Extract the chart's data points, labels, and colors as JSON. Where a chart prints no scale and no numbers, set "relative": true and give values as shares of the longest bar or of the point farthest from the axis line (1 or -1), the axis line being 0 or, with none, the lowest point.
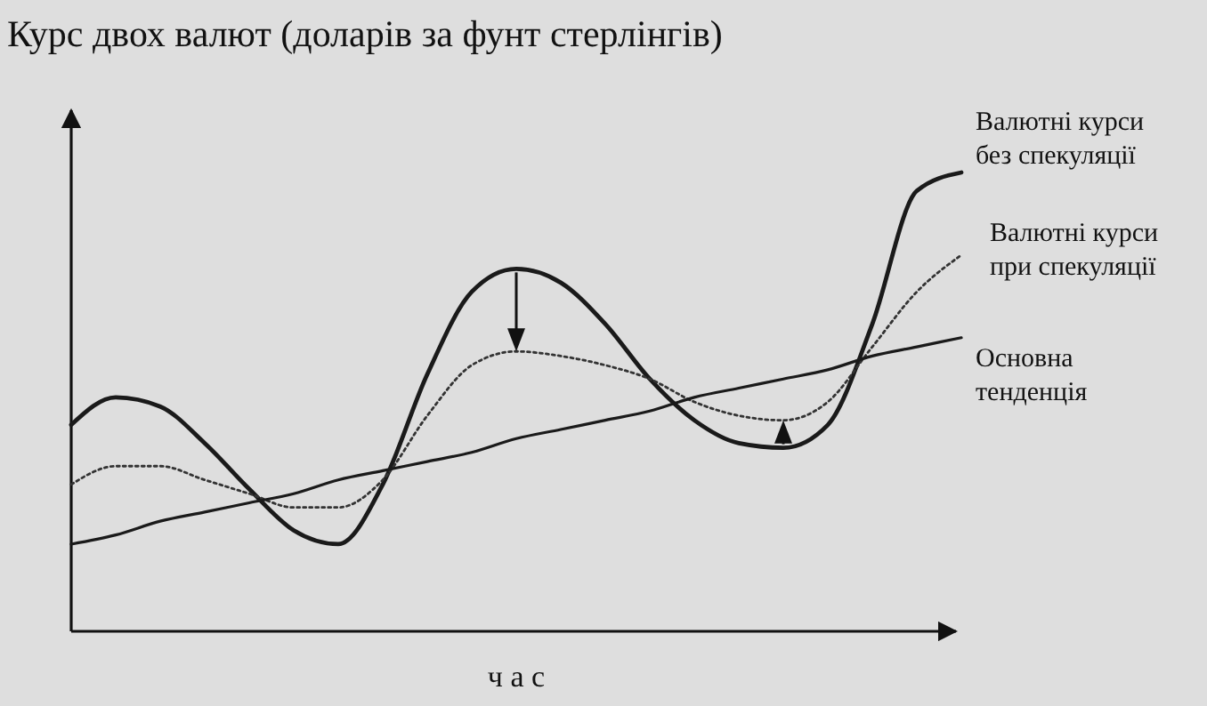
{
  "chart_data": {
    "type": "line",
    "title": "Курс двох валют (доларів за фунт стерлінгів)",
    "xlabel": "ч а с",
    "relative": true,
    "grid": false,
    "legend": false,
    "marker": "none",
    "categories": [
      null,
      null,
      null,
      null,
      null,
      null,
      null,
      null,
      null,
      null,
      null,
      null,
      null,
      null,
      null,
      null,
      null,
      null,
      null,
      null,
      null
    ],
    "series": [
      {
        "name": "Валютні курси без спекуляції",
        "color": "#1a1a1a",
        "line_style": "solid",
        "values": [
          0.45,
          0.51,
          0.49,
          0.41,
          0.31,
          0.22,
          0.19,
          0.32,
          0.56,
          0.74,
          0.79,
          0.76,
          0.67,
          0.55,
          0.46,
          0.41,
          0.4,
          0.45,
          0.67,
          0.96,
          1
        ]
      },
      {
        "name": "Валютні курси при спекуляції",
        "color": "#333333",
        "line_style": "dotted",
        "values": [
          0.32,
          0.36,
          0.36,
          0.33,
          0.3,
          0.27,
          0.27,
          0.33,
          0.47,
          0.58,
          0.61,
          0.6,
          0.58,
          0.55,
          0.5,
          0.47,
          0.46,
          0.5,
          0.62,
          0.74,
          0.82
        ]
      },
      {
        "name": "Основна тенденція",
        "color": "#1a1a1a",
        "line_style": "solid",
        "values": [
          0.19,
          0.21,
          0.24,
          0.26,
          0.28,
          0.3,
          0.33,
          0.35,
          0.37,
          0.39,
          0.42,
          0.44,
          0.46,
          0.48,
          0.51,
          0.53,
          0.55,
          0.57,
          0.6,
          0.62,
          0.64
        ]
      }
    ]
  }
}
